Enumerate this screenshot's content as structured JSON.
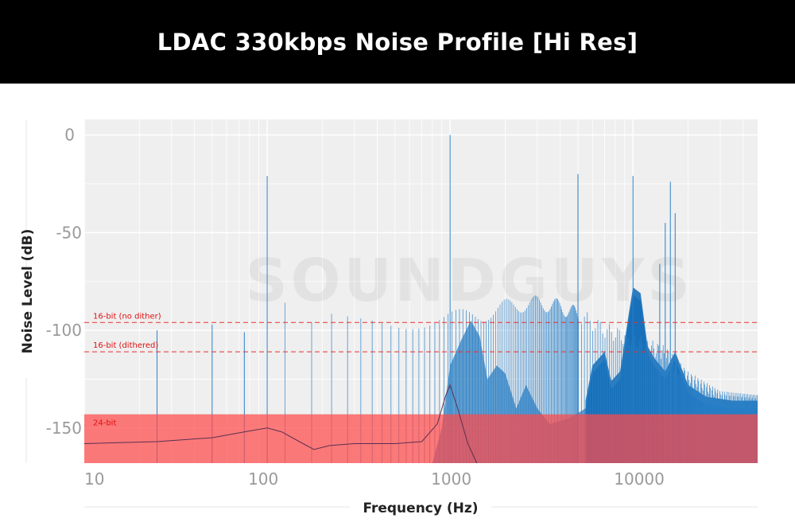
{
  "chart_data": {
    "type": "line",
    "title": "LDAC 330kbps Noise Profile [Hi Res]",
    "xlabel": "Frequency (Hz)",
    "ylabel": "Noise Level (dB)",
    "x_scale": "log",
    "xlim": [
      10,
      48000
    ],
    "ylim": [
      -168,
      8
    ],
    "x_ticks": [
      10,
      100,
      1000,
      10000
    ],
    "x_tick_labels": [
      "10",
      "100",
      "1000",
      "10000"
    ],
    "y_ticks": [
      0,
      -50,
      -100,
      -150
    ],
    "y_tick_labels": [
      "0",
      "-50",
      "-100",
      "-150"
    ],
    "grid": true,
    "colors": {
      "background": "#efefef",
      "spectrum": "#1f78c1",
      "spectrum_dense": "#0a68b5",
      "reference": "#e83030",
      "region_24bit": "#ff5a5a",
      "floor_line": "#5a3050"
    },
    "reference_lines": [
      {
        "label": "16-bit (no dither)",
        "value": -96
      },
      {
        "label": "16-bit (dithered)",
        "value": -111
      }
    ],
    "reference_region": {
      "label": "24-bit",
      "value": -143
    },
    "tone_peaks": [
      {
        "x": 25,
        "y": -100
      },
      {
        "x": 50,
        "y": -97
      },
      {
        "x": 75,
        "y": -101
      },
      {
        "x": 100,
        "y": -21
      },
      {
        "x": 1000,
        "y": 0
      },
      {
        "x": 5000,
        "y": -20
      },
      {
        "x": 10000,
        "y": -21
      },
      {
        "x": 14000,
        "y": -66
      },
      {
        "x": 15000,
        "y": -45
      },
      {
        "x": 16000,
        "y": -24
      },
      {
        "x": 17000,
        "y": -40
      }
    ],
    "harmonic_spacing_hz": 50,
    "harmonic_envelope": [
      [
        125,
        -89
      ],
      [
        150,
        -105
      ],
      [
        200,
        -95
      ],
      [
        300,
        -97
      ],
      [
        500,
        -97
      ],
      [
        700,
        -95
      ],
      [
        900,
        -94
      ],
      [
        1500,
        -92
      ],
      [
        2000,
        -88
      ],
      [
        3000,
        -86
      ],
      [
        4000,
        -88
      ],
      [
        5000,
        -92
      ],
      [
        7000,
        -100
      ],
      [
        10000,
        -105
      ],
      [
        15000,
        -112
      ],
      [
        20000,
        -125
      ],
      [
        30000,
        -135
      ],
      [
        48000,
        -137
      ]
    ],
    "noise_spectrum": [
      [
        800,
        -168
      ],
      [
        900,
        -150
      ],
      [
        1000,
        -118
      ],
      [
        1150,
        -105
      ],
      [
        1300,
        -95
      ],
      [
        1450,
        -103
      ],
      [
        1600,
        -125
      ],
      [
        1800,
        -118
      ],
      [
        2000,
        -122
      ],
      [
        2300,
        -140
      ],
      [
        2600,
        -128
      ],
      [
        3000,
        -140
      ],
      [
        3500,
        -148
      ],
      [
        4500,
        -145
      ],
      [
        5500,
        -140
      ],
      [
        6000,
        -122
      ],
      [
        7000,
        -115
      ],
      [
        7600,
        -130
      ],
      [
        8500,
        -125
      ],
      [
        9500,
        -95
      ],
      [
        10000,
        -82
      ],
      [
        11000,
        -85
      ],
      [
        12000,
        -112
      ],
      [
        13000,
        -118
      ],
      [
        15000,
        -125
      ],
      [
        17000,
        -115
      ],
      [
        20000,
        -132
      ],
      [
        25000,
        -138
      ],
      [
        35000,
        -140
      ],
      [
        48000,
        -140
      ]
    ],
    "noise_floor": [
      [
        10,
        -158
      ],
      [
        25,
        -157
      ],
      [
        50,
        -155
      ],
      [
        75,
        -152
      ],
      [
        100,
        -150
      ],
      [
        120,
        -152
      ],
      [
        150,
        -157
      ],
      [
        180,
        -161
      ],
      [
        220,
        -159
      ],
      [
        300,
        -158
      ],
      [
        500,
        -158
      ],
      [
        700,
        -157
      ],
      [
        850,
        -148
      ],
      [
        950,
        -133
      ],
      [
        1000,
        -128
      ],
      [
        1100,
        -140
      ],
      [
        1250,
        -158
      ],
      [
        1400,
        -168
      ]
    ]
  },
  "watermark": "SOUNDGUYS"
}
